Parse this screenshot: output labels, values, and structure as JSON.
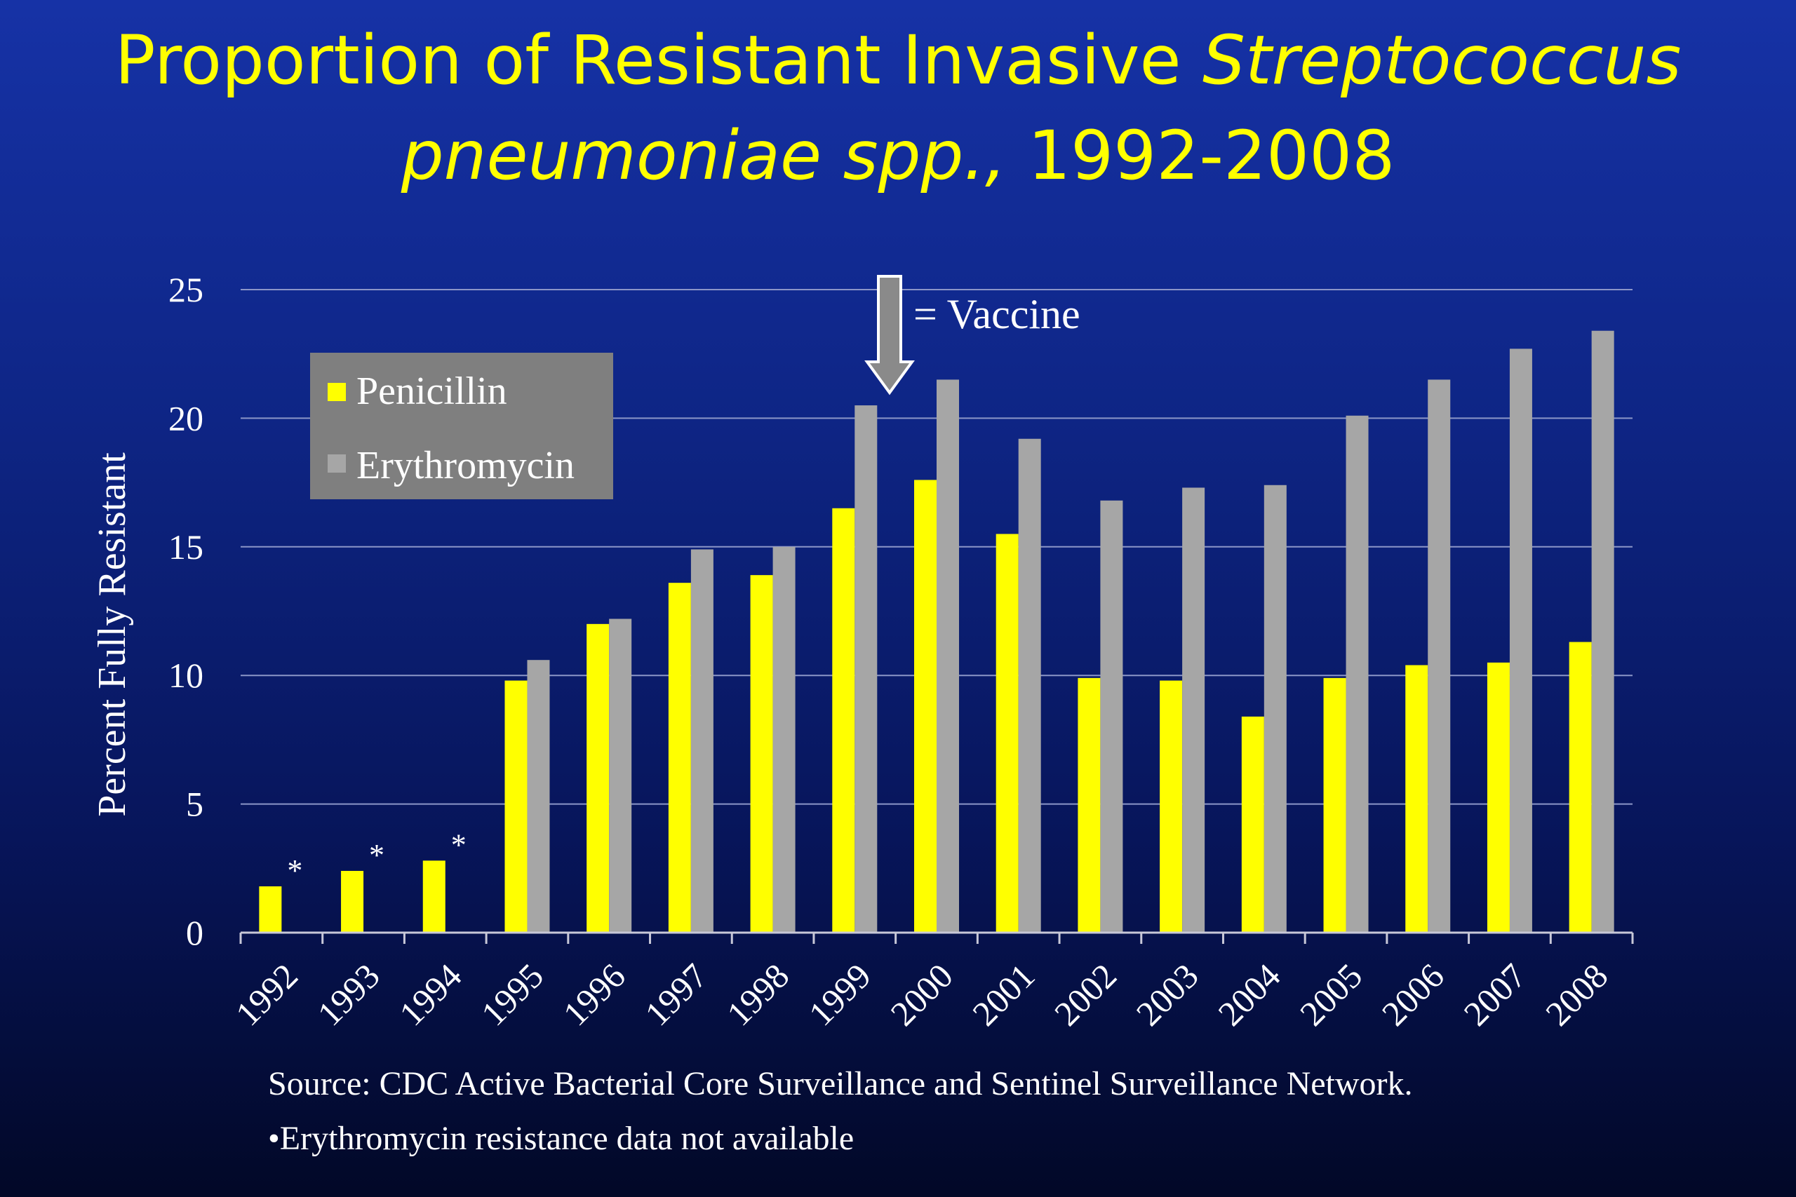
{
  "title": {
    "line1_regular": "Proportion of Resistant Invasive ",
    "line1_italic": "Streptococcus",
    "line2_italic": "pneumoniae spp.,",
    "line2_regular": " 1992-2008"
  },
  "colors": {
    "penicillin": "#ffff00",
    "erythromycin": "#a6a6a6",
    "legend_bg": "#7f7f7f",
    "gridline": "#8c96c8"
  },
  "chart_data": {
    "type": "bar",
    "ylabel": "Percent  Fully Resistant",
    "ylim": [
      0,
      25
    ],
    "yticks": [
      0,
      5,
      10,
      15,
      20,
      25
    ],
    "grid": true,
    "legend_position": "top-left",
    "categories": [
      "1992",
      "1993",
      "1994",
      "1995",
      "1996",
      "1997",
      "1998",
      "1999",
      "2000",
      "2001",
      "2002",
      "2003",
      "2004",
      "2005",
      "2006",
      "2007",
      "2008"
    ],
    "series": [
      {
        "name": "Penicillin",
        "values": [
          1.8,
          2.4,
          2.8,
          9.8,
          12.0,
          13.6,
          13.9,
          16.5,
          17.6,
          15.5,
          9.9,
          9.8,
          8.4,
          9.9,
          10.4,
          10.5,
          11.3
        ]
      },
      {
        "name": "Erythromycin",
        "values": [
          null,
          null,
          null,
          10.6,
          12.2,
          14.9,
          15.0,
          20.5,
          21.5,
          19.2,
          16.8,
          17.3,
          17.4,
          20.1,
          21.5,
          22.7,
          23.4
        ]
      }
    ],
    "annotations": {
      "vaccine_label": "= Vaccine",
      "vaccine_position": "between 1999 and 2000",
      "missing_marker": "*"
    }
  },
  "notes": {
    "source": "Source: CDC Active Bacterial Core Surveillance and Sentinel Surveillance Network.",
    "footnote": "•Erythromycin resistance data not available"
  }
}
